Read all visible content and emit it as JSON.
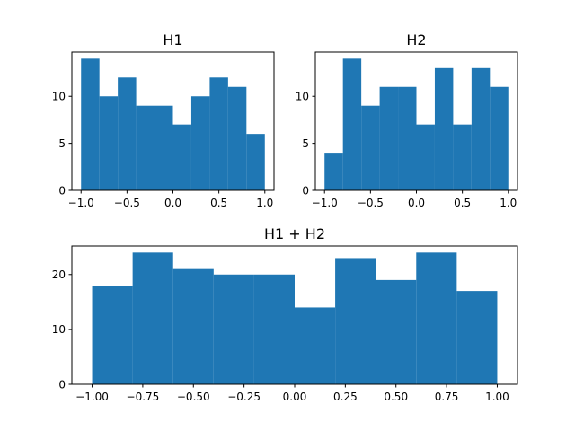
{
  "chart_data": [
    {
      "type": "bar",
      "title": "H1",
      "xlabel": "",
      "ylabel": "",
      "bin_edges": [
        -1.0,
        -0.8,
        -0.6,
        -0.4,
        -0.2,
        0.0,
        0.2,
        0.4,
        0.6,
        0.8,
        1.0
      ],
      "values": [
        14,
        10,
        12,
        9,
        9,
        7,
        10,
        12,
        11,
        6
      ],
      "xlim": [
        -1.1,
        1.1
      ],
      "ylim": [
        0,
        14.7
      ],
      "xticks": [
        -1.0,
        -0.5,
        0.0,
        0.5,
        1.0
      ],
      "xtick_labels": [
        "−1.0",
        "−0.5",
        "0.0",
        "0.5",
        "1.0"
      ],
      "yticks": [
        0,
        5,
        10
      ],
      "ytick_labels": [
        "0",
        "5",
        "10"
      ],
      "color": "#1f77b4",
      "grid": false
    },
    {
      "type": "bar",
      "title": "H2",
      "xlabel": "",
      "ylabel": "",
      "bin_edges": [
        -1.0,
        -0.8,
        -0.6,
        -0.4,
        -0.2,
        0.0,
        0.2,
        0.4,
        0.6,
        0.8,
        1.0
      ],
      "values": [
        4,
        14,
        9,
        11,
        11,
        7,
        13,
        7,
        13,
        11
      ],
      "xlim": [
        -1.1,
        1.1
      ],
      "ylim": [
        0,
        14.7
      ],
      "xticks": [
        -1.0,
        -0.5,
        0.0,
        0.5,
        1.0
      ],
      "xtick_labels": [
        "−1.0",
        "−0.5",
        "0.0",
        "0.5",
        "1.0"
      ],
      "yticks": [
        0,
        5,
        10
      ],
      "ytick_labels": [
        "0",
        "5",
        "10"
      ],
      "color": "#1f77b4",
      "grid": false
    },
    {
      "type": "bar",
      "title": "H1 + H2",
      "xlabel": "",
      "ylabel": "",
      "bin_edges": [
        -1.0,
        -0.8,
        -0.6,
        -0.4,
        -0.2,
        0.0,
        0.2,
        0.4,
        0.6,
        0.8,
        1.0
      ],
      "values": [
        18,
        24,
        21,
        20,
        20,
        14,
        23,
        19,
        24,
        17
      ],
      "xlim": [
        -1.1,
        1.1
      ],
      "ylim": [
        0,
        25.2
      ],
      "xticks": [
        -1.0,
        -0.75,
        -0.5,
        -0.25,
        0.0,
        0.25,
        0.5,
        0.75,
        1.0
      ],
      "xtick_labels": [
        "−1.00",
        "−0.75",
        "−0.50",
        "−0.25",
        "0.00",
        "0.25",
        "0.50",
        "0.75",
        "1.00"
      ],
      "yticks": [
        0,
        10,
        20
      ],
      "ytick_labels": [
        "0",
        "10",
        "20"
      ],
      "color": "#1f77b4",
      "grid": false
    }
  ]
}
